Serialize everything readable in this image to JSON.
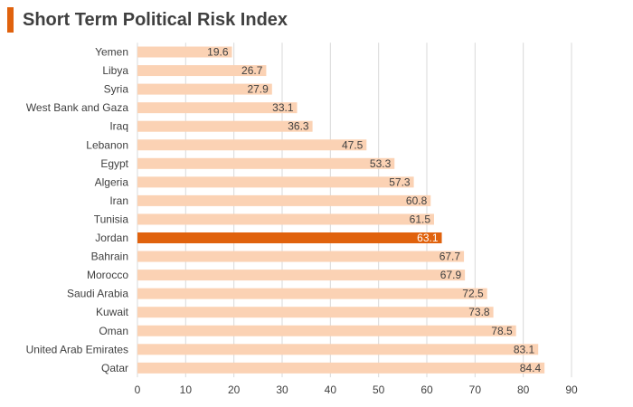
{
  "chart_data": {
    "type": "bar",
    "orientation": "horizontal",
    "title": "Short Term Political Risk Index",
    "categories": [
      "Yemen",
      "Libya",
      "Syria",
      "West Bank and Gaza",
      "Iraq",
      "Lebanon",
      "Egypt",
      "Algeria",
      "Iran",
      "Tunisia",
      "Jordan",
      "Bahrain",
      "Morocco",
      "Saudi Arabia",
      "Kuwait",
      "Oman",
      "United Arab Emirates",
      "Qatar"
    ],
    "values": [
      19.6,
      26.7,
      27.9,
      33.1,
      36.3,
      47.5,
      53.3,
      57.3,
      60.8,
      61.5,
      63.1,
      67.7,
      67.9,
      72.5,
      73.8,
      78.5,
      83.1,
      84.4
    ],
    "value_labels": [
      "19.6",
      "26.7",
      "27.9",
      "33.1",
      "36.3",
      "47.5",
      "53.3",
      "57.3",
      "60.8",
      "61.5",
      "63.1",
      "67.7",
      "67.9",
      "72.5",
      "73.8",
      "78.5",
      "83.1",
      "84.4"
    ],
    "highlight": "Jordan",
    "xlim": [
      0,
      90
    ],
    "xticks": [
      0,
      10,
      20,
      30,
      40,
      50,
      60,
      70,
      80,
      90
    ],
    "xtick_labels": [
      "0",
      "10",
      "20",
      "30",
      "40",
      "50",
      "60",
      "70",
      "80",
      "90"
    ],
    "grid": true,
    "xlabel": "",
    "ylabel": ""
  },
  "colors": {
    "accent": "#E0620D",
    "bar": "#FBD2B4",
    "highlight_bar": "#E0620D",
    "text": "#404040",
    "grid": "#D9D9D9"
  }
}
